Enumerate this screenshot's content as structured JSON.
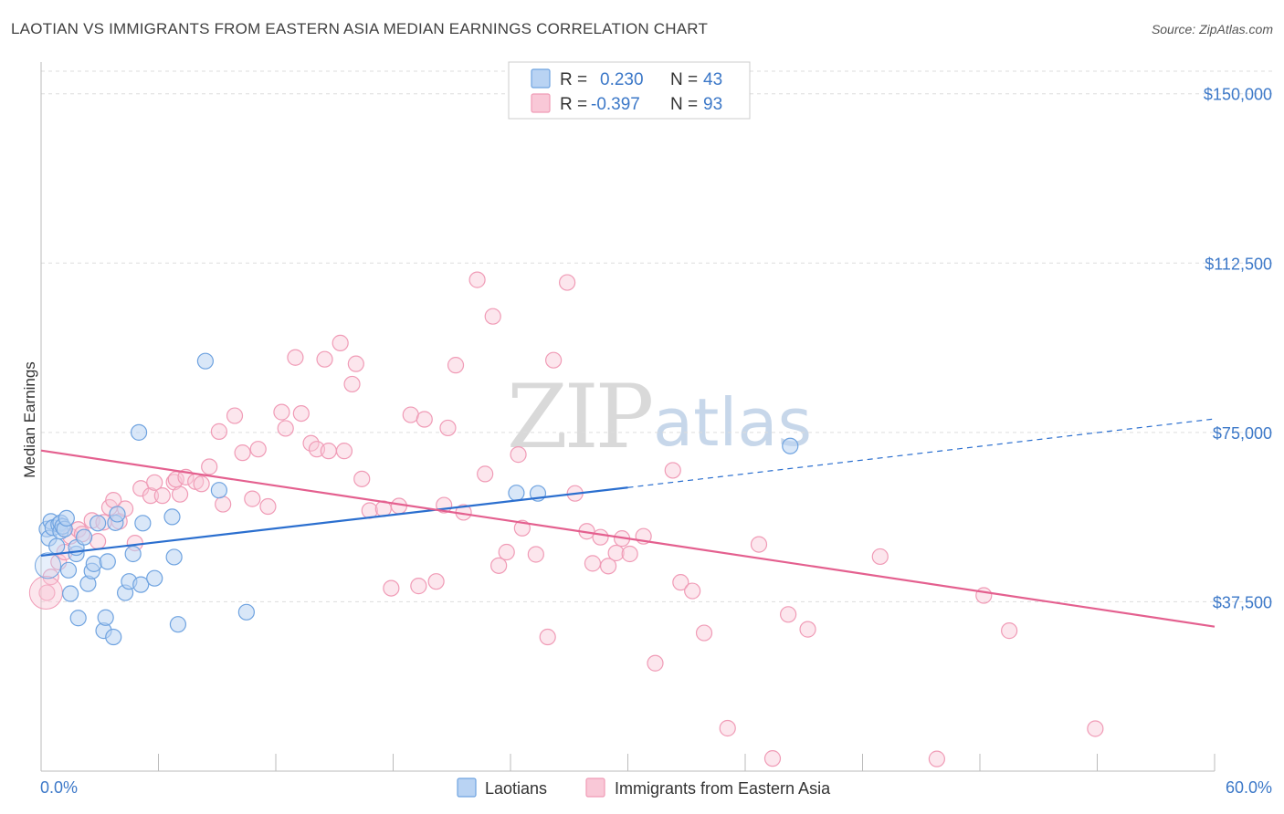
{
  "title": "LAOTIAN VS IMMIGRANTS FROM EASTERN ASIA MEDIAN EARNINGS CORRELATION CHART",
  "source": "Source: ZipAtlas.com",
  "watermark": {
    "zip": "ZIP",
    "atlas": "atlas"
  },
  "colors": {
    "blue": "#6fa3e0",
    "blue_line": "#2b6fcf",
    "pink": "#f09bb6",
    "pink_line": "#e4608f",
    "tick_text": "#3c78c8"
  },
  "legend": {
    "r_label": "R =",
    "n_label": "N =",
    "blue": {
      "r": "0.230",
      "n": "43"
    },
    "pink": {
      "r": "-0.397",
      "n": "93"
    }
  },
  "bottom_legend": {
    "blue": "Laotians",
    "pink": "Immigrants from Eastern Asia"
  },
  "chart_data": {
    "type": "scatter",
    "title": "LAOTIAN VS IMMIGRANTS FROM EASTERN ASIA MEDIAN EARNINGS CORRELATION CHART",
    "xlabel": "",
    "ylabel": "Median Earnings",
    "xlim": [
      0,
      60
    ],
    "ylim": [
      0,
      155000
    ],
    "x_tick_labels": [
      "0.0%",
      "60.0%"
    ],
    "y_ticks": [
      37500,
      75000,
      112500,
      150000
    ],
    "y_tick_labels": [
      "$37,500",
      "$75,000",
      "$112,500",
      "$150,000"
    ],
    "grid": true,
    "series": [
      {
        "name": "Laotians",
        "color": "blue",
        "r": 0.23,
        "n": 43,
        "trend": {
          "x0": 0,
          "y0": 47700,
          "x1": 30,
          "y1": 62800,
          "dashed_to_x": 60,
          "dashed_to_y": 78000
        },
        "points": [
          [
            0.3,
            53600
          ],
          [
            0.4,
            51600
          ],
          [
            0.5,
            55300
          ],
          [
            0.6,
            53900
          ],
          [
            0.8,
            49800
          ],
          [
            0.9,
            54600
          ],
          [
            1.0,
            55000
          ],
          [
            1.0,
            53100
          ],
          [
            1.1,
            54200
          ],
          [
            1.2,
            53600
          ],
          [
            1.3,
            56000
          ],
          [
            1.4,
            44500
          ],
          [
            1.5,
            39300
          ],
          [
            1.8,
            48100
          ],
          [
            1.8,
            49500
          ],
          [
            1.9,
            33900
          ],
          [
            2.2,
            51800
          ],
          [
            2.4,
            41500
          ],
          [
            2.6,
            44300
          ],
          [
            2.7,
            45900
          ],
          [
            2.9,
            54900
          ],
          [
            3.2,
            31100
          ],
          [
            3.3,
            34000
          ],
          [
            3.4,
            46400
          ],
          [
            3.7,
            29700
          ],
          [
            3.8,
            55000
          ],
          [
            3.9,
            56900
          ],
          [
            4.3,
            39500
          ],
          [
            4.5,
            42000
          ],
          [
            4.7,
            48100
          ],
          [
            5.0,
            75000
          ],
          [
            5.1,
            41300
          ],
          [
            5.2,
            54900
          ],
          [
            5.8,
            42700
          ],
          [
            6.7,
            56300
          ],
          [
            6.8,
            47400
          ],
          [
            7.0,
            32500
          ],
          [
            8.4,
            90800
          ],
          [
            9.1,
            62200
          ],
          [
            10.5,
            35200
          ],
          [
            24.3,
            61600
          ],
          [
            25.4,
            61500
          ],
          [
            38.3,
            72000
          ]
        ]
      },
      {
        "name": "Immigrants from Eastern Asia",
        "color": "pink",
        "r": -0.397,
        "n": 93,
        "trend": {
          "x0": 0,
          "y0": 71000,
          "x1": 60,
          "y1": 32000
        },
        "points": [
          [
            0.3,
            39500
          ],
          [
            0.5,
            43000
          ],
          [
            0.9,
            46300
          ],
          [
            1.2,
            48500
          ],
          [
            1.5,
            52000
          ],
          [
            1.9,
            53500
          ],
          [
            2.1,
            52500
          ],
          [
            2.6,
            55500
          ],
          [
            2.9,
            50900
          ],
          [
            3.2,
            55100
          ],
          [
            3.5,
            58400
          ],
          [
            3.7,
            60000
          ],
          [
            4.0,
            55300
          ],
          [
            4.3,
            58100
          ],
          [
            4.8,
            50500
          ],
          [
            5.1,
            62600
          ],
          [
            5.6,
            61000
          ],
          [
            5.8,
            63900
          ],
          [
            6.2,
            61000
          ],
          [
            6.8,
            64000
          ],
          [
            6.9,
            64600
          ],
          [
            7.1,
            61300
          ],
          [
            7.4,
            65100
          ],
          [
            7.9,
            64100
          ],
          [
            8.2,
            63600
          ],
          [
            8.6,
            67400
          ],
          [
            9.1,
            75200
          ],
          [
            9.3,
            59100
          ],
          [
            9.9,
            78700
          ],
          [
            10.3,
            70500
          ],
          [
            10.8,
            60300
          ],
          [
            11.1,
            71300
          ],
          [
            11.6,
            58600
          ],
          [
            12.3,
            79500
          ],
          [
            12.5,
            75900
          ],
          [
            13.0,
            91600
          ],
          [
            13.3,
            79200
          ],
          [
            13.8,
            72600
          ],
          [
            14.1,
            71300
          ],
          [
            14.5,
            91200
          ],
          [
            14.7,
            70900
          ],
          [
            15.3,
            94800
          ],
          [
            15.5,
            70900
          ],
          [
            15.9,
            85700
          ],
          [
            16.1,
            90200
          ],
          [
            16.4,
            64700
          ],
          [
            16.8,
            57700
          ],
          [
            17.5,
            58100
          ],
          [
            17.9,
            40500
          ],
          [
            18.3,
            58700
          ],
          [
            18.9,
            78900
          ],
          [
            19.3,
            41000
          ],
          [
            19.6,
            77900
          ],
          [
            20.2,
            42000
          ],
          [
            20.6,
            58900
          ],
          [
            20.8,
            76000
          ],
          [
            21.2,
            89900
          ],
          [
            21.6,
            57300
          ],
          [
            22.3,
            108800
          ],
          [
            22.7,
            65800
          ],
          [
            23.1,
            100700
          ],
          [
            23.4,
            45500
          ],
          [
            23.8,
            48500
          ],
          [
            24.4,
            70100
          ],
          [
            24.6,
            53800
          ],
          [
            25.3,
            48000
          ],
          [
            25.9,
            29700
          ],
          [
            26.2,
            91000
          ],
          [
            26.9,
            108200
          ],
          [
            27.3,
            61500
          ],
          [
            27.9,
            53100
          ],
          [
            28.2,
            46000
          ],
          [
            28.6,
            51800
          ],
          [
            29.0,
            45400
          ],
          [
            29.4,
            48300
          ],
          [
            29.7,
            51500
          ],
          [
            30.1,
            48100
          ],
          [
            30.8,
            52000
          ],
          [
            31.4,
            23900
          ],
          [
            32.3,
            66600
          ],
          [
            32.7,
            41800
          ],
          [
            33.3,
            39900
          ],
          [
            33.9,
            30600
          ],
          [
            35.1,
            9500
          ],
          [
            36.7,
            50200
          ],
          [
            37.4,
            2800
          ],
          [
            38.2,
            34700
          ],
          [
            39.2,
            31400
          ],
          [
            42.9,
            47500
          ],
          [
            45.8,
            2700
          ],
          [
            48.2,
            38900
          ],
          [
            49.5,
            31100
          ],
          [
            53.9,
            9400
          ]
        ]
      }
    ]
  }
}
